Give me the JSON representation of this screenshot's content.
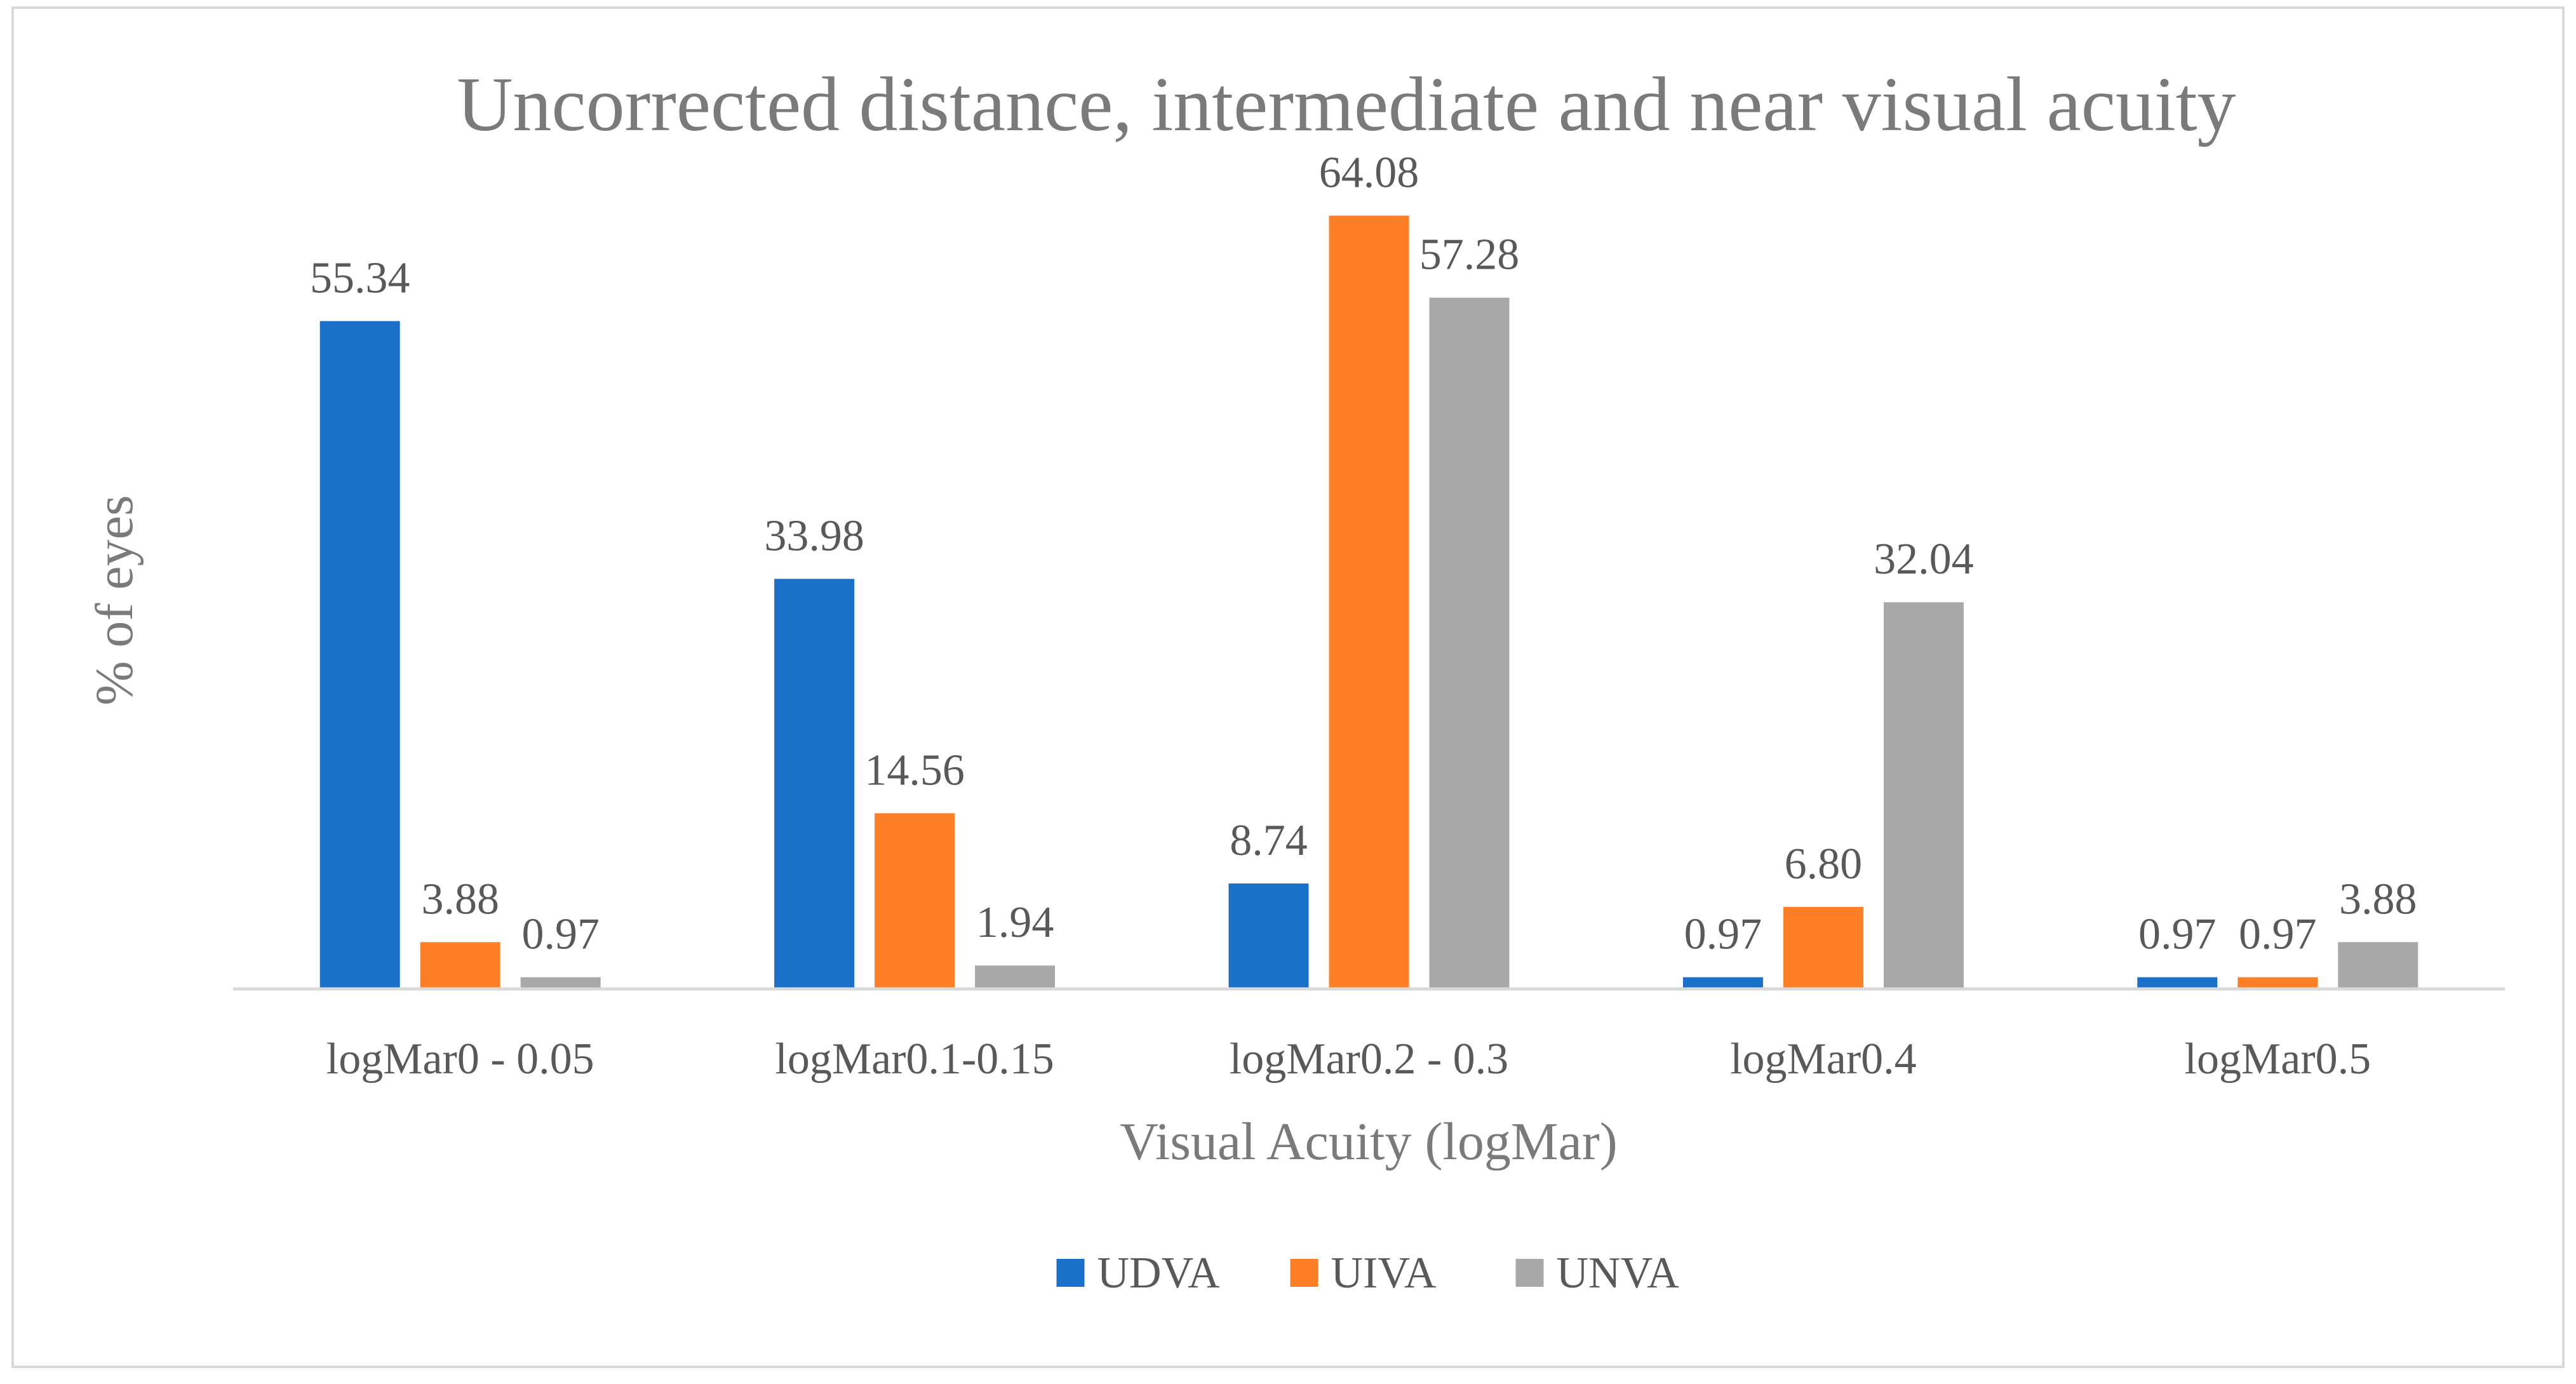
{
  "chart_data": {
    "type": "bar",
    "title": "Uncorrected distance, intermediate and near visual acuity",
    "xlabel": "Visual Acuity (logMar)",
    "ylabel": "% of eyes",
    "ylim": [
      0,
      70
    ],
    "grid": false,
    "legend_position": "bottom-center",
    "categories": [
      "logMar0 - 0.05",
      "logMar0.1-0.15",
      "logMar0.2 - 0.3",
      "logMar0.4",
      "logMar0.5"
    ],
    "series": [
      {
        "name": "UDVA",
        "color": "#1870c9",
        "values": [
          55.34,
          33.98,
          8.74,
          0.97,
          0.97
        ],
        "labels": [
          "55.34",
          "33.98",
          "8.74",
          "0.97",
          "0.97"
        ]
      },
      {
        "name": "UIVA",
        "color": "#ff7f27",
        "values": [
          3.88,
          14.56,
          64.08,
          6.8,
          0.97
        ],
        "labels": [
          "3.88",
          "14.56",
          "64.08",
          "6.80",
          "0.97"
        ]
      },
      {
        "name": "UNVA",
        "color": "#a8a8a8",
        "values": [
          0.97,
          1.94,
          57.28,
          32.04,
          3.88
        ],
        "labels": [
          "0.97",
          "1.94",
          "57.28",
          "32.04",
          "3.88"
        ]
      }
    ]
  }
}
